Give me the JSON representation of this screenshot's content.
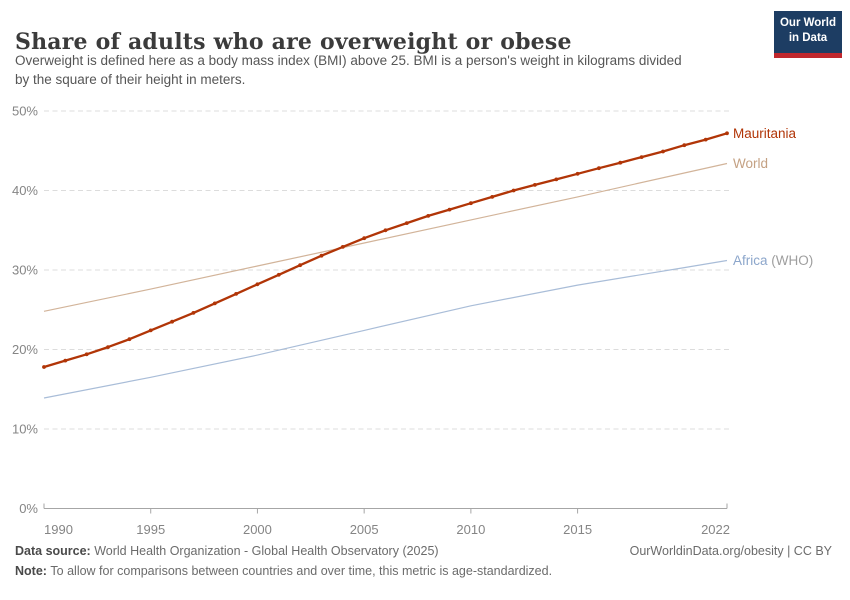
{
  "header": {
    "title": "Share of adults who are overweight or obese",
    "subtitle_lines": [
      "Overweight is defined here as a body mass index (BMI) above 25. BMI is a person's weight in kilograms divided",
      "by the square of their height in meters."
    ],
    "logo": {
      "line1": "Our World",
      "line2": "in Data"
    }
  },
  "chart_data": {
    "type": "line",
    "title": "Share of adults who are overweight or obese",
    "xlabel": "",
    "ylabel": "",
    "ylim": [
      0,
      50
    ],
    "yticks": [
      0,
      10,
      20,
      30,
      40,
      50
    ],
    "ytick_suffix": "%",
    "xlim": [
      1990,
      2022
    ],
    "xticks": [
      1990,
      1995,
      2000,
      2005,
      2010,
      2015,
      2022
    ],
    "grid": "horizontal-dashed",
    "legend_position": "right-of-line-labels",
    "colors": {
      "gridline": "#dcdcdc",
      "axis": "#a6a6a6",
      "tick_label": "#858585"
    },
    "series": [
      {
        "name": "Africa (WHO)",
        "color": "#a9bdd8",
        "focused": false,
        "markers": false,
        "label_parts": [
          {
            "text": "Africa ",
            "color": "#8ca6cb"
          },
          {
            "text": "(WHO)",
            "color": "#9e9e9e"
          }
        ],
        "years": [
          1990,
          1995,
          2000,
          2005,
          2010,
          2015,
          2020,
          2022
        ],
        "values": [
          13.9,
          16.5,
          19.3,
          22.4,
          25.5,
          28.1,
          30.3,
          31.2
        ]
      },
      {
        "name": "World",
        "color": "#d2b49a",
        "focused": false,
        "markers": false,
        "label_parts": [
          {
            "text": "World",
            "color": "#c4a183"
          }
        ],
        "years": [
          1990,
          1995,
          2000,
          2005,
          2010,
          2015,
          2020,
          2022
        ],
        "values": [
          24.8,
          27.6,
          30.5,
          33.4,
          36.3,
          39.2,
          42.2,
          43.4
        ]
      },
      {
        "name": "Mauritania",
        "color": "#b13507",
        "focused": true,
        "markers": true,
        "label_parts": [
          {
            "text": "Mauritania",
            "color": "#b13507"
          }
        ],
        "years": [
          1990,
          1991,
          1992,
          1993,
          1994,
          1995,
          1996,
          1997,
          1998,
          1999,
          2000,
          2001,
          2002,
          2003,
          2004,
          2005,
          2006,
          2007,
          2008,
          2009,
          2010,
          2011,
          2012,
          2013,
          2014,
          2015,
          2016,
          2017,
          2018,
          2019,
          2020,
          2021,
          2022
        ],
        "values": [
          17.8,
          18.6,
          19.4,
          20.3,
          21.3,
          22.4,
          23.5,
          24.6,
          25.8,
          27.0,
          28.2,
          29.4,
          30.6,
          31.8,
          32.9,
          34.0,
          35.0,
          35.9,
          36.8,
          37.6,
          38.4,
          39.2,
          40.0,
          40.7,
          41.4,
          42.1,
          42.8,
          43.5,
          44.2,
          44.9,
          45.7,
          46.4,
          47.2
        ]
      }
    ]
  },
  "footer": {
    "data_source_label": "Data source: ",
    "data_source_value": "World Health Organization - Global Health Observatory (2025)",
    "link": "OurWorldinData.org/obesity | CC BY",
    "note_label": "Note: ",
    "note_value": "To allow for comparisons between countries and over time, this metric is age-standardized."
  }
}
